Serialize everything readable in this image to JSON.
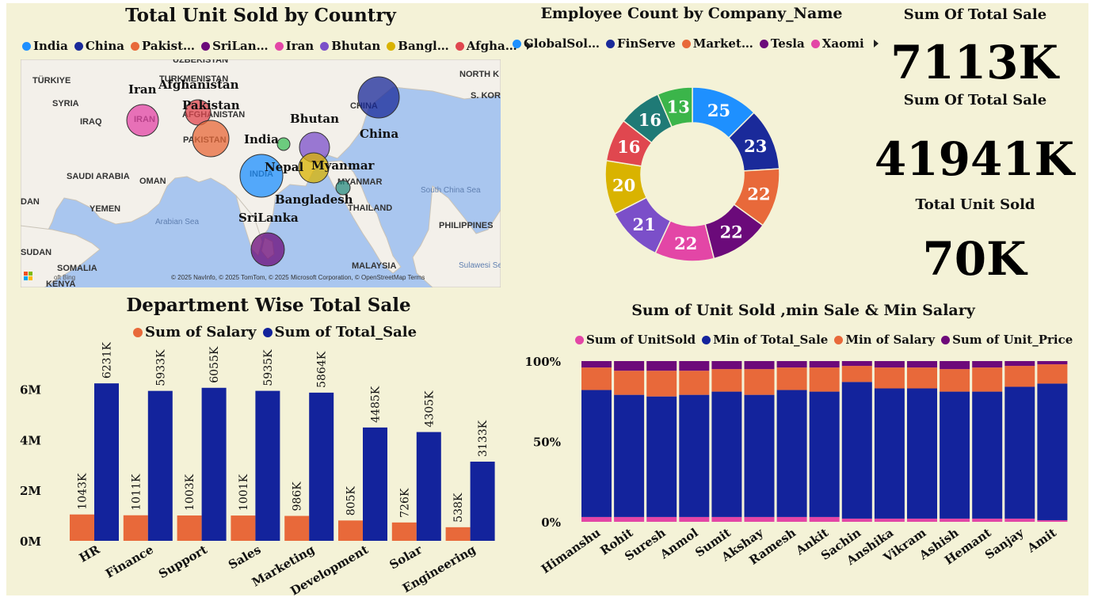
{
  "colors": {
    "background": "#f4f2d7",
    "orange": "#e8693a",
    "navy": "#13239c",
    "magenta": "#e346a6",
    "purple": "#6d0a7a"
  },
  "map_panel": {
    "title": "Total Unit Sold by Country",
    "legend": [
      {
        "label": "India",
        "color": "#1e90ff"
      },
      {
        "label": "China",
        "color": "#1a2a9a"
      },
      {
        "label": "Pakist…",
        "color": "#e8693a"
      },
      {
        "label": "SriLan…",
        "color": "#6b0a7a"
      },
      {
        "label": "Iran",
        "color": "#e346a6"
      },
      {
        "label": "Bhutan",
        "color": "#7b4fc9"
      },
      {
        "label": "Bangl…",
        "color": "#d9b300"
      },
      {
        "label": "Afgha…",
        "color": "#e0474f"
      }
    ],
    "base_labels": [
      "TÜRKIYE",
      "UZBEKISTAN",
      "TURKMENISTAN",
      "SYRIA",
      "IRAQ",
      "IRAN",
      "AFGHANISTAN",
      "PAKISTAN",
      "SAUDI ARABIA",
      "OMAN",
      "YEMEN",
      "INDIA",
      "MYANMAR",
      "THAILAND",
      "CHINA",
      "NORTH K",
      "S. KORE",
      "PHILIPPINES",
      "MALAYSIA",
      "SUDAN",
      "SOMALIA",
      "KENYA",
      "DAN",
      "Arabian Sea",
      "South China Sea",
      "Sulawesi Sea"
    ],
    "country_labels": [
      "Iran",
      "Afghanistan",
      "Pakistan",
      "Bhutan",
      "China",
      "India",
      "Nepal",
      "Myanmar",
      "Bangladesh",
      "SriLanka"
    ],
    "bubbles": [
      {
        "country": "China",
        "color": "#1a2a9a"
      },
      {
        "country": "Iran",
        "color": "#e346a6"
      },
      {
        "country": "Afghanistan",
        "color": "#e0474f"
      },
      {
        "country": "Pakistan",
        "color": "#e8693a"
      },
      {
        "country": "Nepal",
        "color": "#3fbf5a"
      },
      {
        "country": "Bhutan",
        "color": "#7b4fc9"
      },
      {
        "country": "India",
        "color": "#1e90ff"
      },
      {
        "country": "Bangladesh",
        "color": "#d9b300"
      },
      {
        "country": "Myanmar",
        "color": "#2a8c80"
      },
      {
        "country": "SriLanka",
        "color": "#6b0a7a"
      }
    ],
    "copyright": "© 2025 NavInfo, © 2025 TomTom, © 2025 Microsoft Corporation, © OpenStreetMap  Terms",
    "bing_label": "oft Bing"
  },
  "donut_panel": {
    "title": "Employee Count by Company_Name",
    "legend": [
      {
        "label": "GlobalSol…",
        "color": "#1e90ff"
      },
      {
        "label": "FinServe",
        "color": "#1a2a9a"
      },
      {
        "label": "Market…",
        "color": "#e8693a"
      },
      {
        "label": "Tesla",
        "color": "#6b0a7a"
      },
      {
        "label": "Xaomi",
        "color": "#e346a6"
      }
    ],
    "chart_data": {
      "type": "pie",
      "segments": [
        {
          "value": 25,
          "color": "#1e90ff"
        },
        {
          "value": 23,
          "color": "#1a2a9a"
        },
        {
          "value": 22,
          "color": "#e8693a"
        },
        {
          "value": 22,
          "color": "#6b0a7a"
        },
        {
          "value": 22,
          "color": "#e346a6"
        },
        {
          "value": 21,
          "color": "#7b4fc9"
        },
        {
          "value": 20,
          "color": "#d9b300"
        },
        {
          "value": 16,
          "color": "#e0474f"
        },
        {
          "value": 16,
          "color": "#1f7a76"
        },
        {
          "value": 13,
          "color": "#3bb54a"
        }
      ]
    }
  },
  "kpis": {
    "k1": {
      "label": "Sum Of Total Sale",
      "value": "7113K"
    },
    "k2": {
      "label": "Sum Of Total Sale",
      "value": "41941K"
    },
    "k3": {
      "label": "Total Unit Sold",
      "value": "70K"
    }
  },
  "bar_panel": {
    "title": "Department Wise Total Sale",
    "chart_data": {
      "type": "bar",
      "categories": [
        "HR",
        "Finance",
        "Support",
        "Sales",
        "Marketing",
        "Development",
        "Solar",
        "Engineering"
      ],
      "series": [
        {
          "name": "Sum of Salary",
          "color": "#e8693a",
          "values": [
            1043,
            1011,
            1003,
            1001,
            986,
            805,
            726,
            538
          ],
          "labels": [
            "1043K",
            "1011K",
            "1003K",
            "1001K",
            "986K",
            "805K",
            "726K",
            "538K"
          ]
        },
        {
          "name": "Sum of Total_Sale",
          "color": "#13239c",
          "values": [
            6231,
            5933,
            6055,
            5935,
            5864,
            4485,
            4305,
            3133
          ],
          "labels": [
            "6231K",
            "5933K",
            "6055K",
            "5935K",
            "5864K",
            "4485K",
            "4305K",
            "3133K"
          ]
        }
      ],
      "yticks": [
        {
          "v": 0,
          "label": "0M"
        },
        {
          "v": 2000,
          "label": "2M"
        },
        {
          "v": 4000,
          "label": "4M"
        },
        {
          "v": 6000,
          "label": "6M"
        }
      ],
      "ylim": [
        0,
        6800
      ]
    }
  },
  "stack_panel": {
    "title": "Sum of Unit Sold ,min Sale & Min Salary",
    "chart_data": {
      "type": "bar",
      "stacked": "100%",
      "categories": [
        "Himanshu",
        "Rohit",
        "Suresh",
        "Anmol",
        "Sumit",
        "Akshay",
        "Ramesh",
        "Ankit",
        "Sachin",
        "Anshika",
        "Vikram",
        "Ashish",
        "Hemant",
        "Sanjay",
        "Amit"
      ],
      "series": [
        {
          "name": "Sum of UnitSold",
          "color": "#e346a6",
          "values": [
            3,
            3,
            3,
            3,
            3,
            3,
            3,
            3,
            2,
            2,
            2,
            2,
            2,
            2,
            1
          ]
        },
        {
          "name": "Min of Total_Sale",
          "color": "#13239c",
          "values": [
            79,
            76,
            75,
            76,
            78,
            76,
            79,
            78,
            85,
            81,
            81,
            79,
            79,
            82,
            85
          ]
        },
        {
          "name": "Min of Salary",
          "color": "#e8693a",
          "values": [
            14,
            15,
            16,
            15,
            14,
            16,
            14,
            15,
            10,
            13,
            13,
            14,
            15,
            13,
            12
          ]
        },
        {
          "name": "Sum of Unit_Price",
          "color": "#6d0a7a",
          "values": [
            4,
            6,
            6,
            6,
            5,
            5,
            4,
            4,
            3,
            4,
            4,
            5,
            4,
            3,
            2
          ]
        }
      ],
      "yticks": [
        {
          "v": 0,
          "label": "0%"
        },
        {
          "v": 50,
          "label": "50%"
        },
        {
          "v": 100,
          "label": "100%"
        }
      ],
      "ylim": [
        0,
        100
      ]
    }
  }
}
